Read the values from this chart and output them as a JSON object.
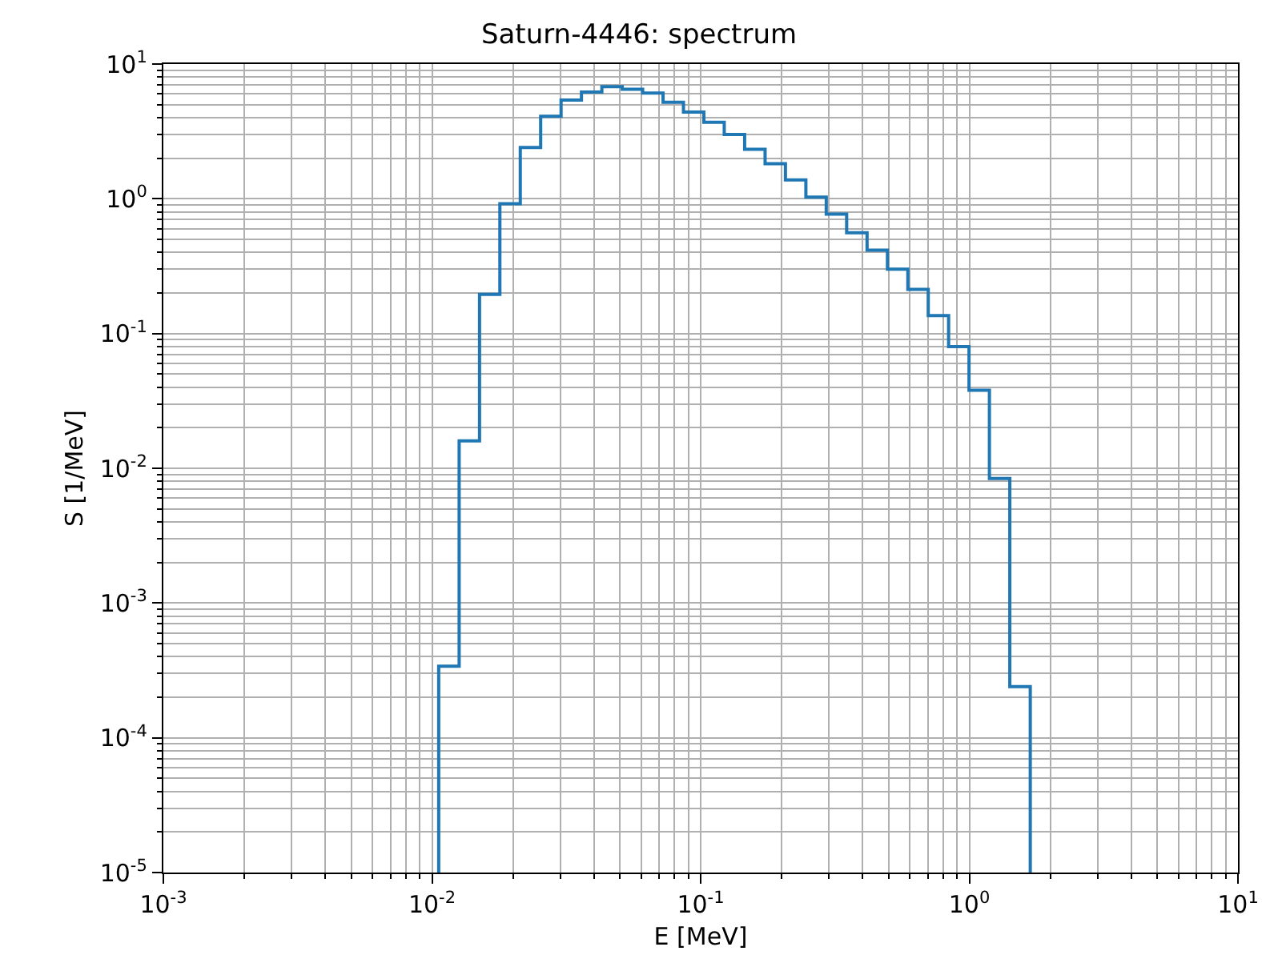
{
  "chart_data": {
    "type": "histogram",
    "title": "Saturn-4446: spectrum",
    "xlabel": "E [MeV]",
    "ylabel": "S [1/MeV]",
    "bins": [
      0.01059,
      0.01262,
      0.01503,
      0.01789,
      0.02131,
      0.02538,
      0.03023,
      0.036,
      0.04288,
      0.05107,
      0.06083,
      0.07245,
      0.08629,
      0.1028,
      0.1224,
      0.1458,
      0.1737,
      0.2068,
      0.2464,
      0.2934,
      0.3495,
      0.4163,
      0.4958,
      0.5905,
      0.7033,
      0.8375,
      0.9975,
      1.188,
      1.415,
      1.686
    ],
    "values": [
      0.00034,
      0.016,
      0.195,
      0.92,
      2.4,
      4.1,
      5.4,
      6.2,
      6.8,
      6.5,
      6.1,
      5.2,
      4.4,
      3.7,
      3.0,
      2.33,
      1.82,
      1.38,
      1.03,
      0.77,
      0.56,
      0.415,
      0.3,
      0.213,
      0.136,
      0.08,
      0.038,
      0.0084,
      0.00024
    ],
    "color": "#1f77b4",
    "log": "xy",
    "grid": true,
    "xlim": [
      0.001,
      10
    ],
    "ylim": [
      1e-05,
      10
    ],
    "xticks": [
      {
        "value": 0.001,
        "label": "10$^{-3}$"
      },
      {
        "value": 0.01,
        "label": "10$^{-2}$"
      },
      {
        "value": 0.1,
        "label": "10$^{-1}$"
      },
      {
        "value": 1,
        "label": "10$^{0}$"
      },
      {
        "value": 10,
        "label": "10$^{1}$"
      }
    ],
    "yticks": [
      {
        "value": 1e-05,
        "label": "10$^{-5}$"
      },
      {
        "value": 0.0001,
        "label": "10$^{-4}$"
      },
      {
        "value": 0.001,
        "label": "10$^{-3}$"
      },
      {
        "value": 0.01,
        "label": "10$^{-2}$"
      },
      {
        "value": 0.1,
        "label": "10$^{-1}$"
      },
      {
        "value": 1,
        "label": "10$^{0}$"
      },
      {
        "value": 10,
        "label": "10$^{1}$"
      }
    ]
  }
}
